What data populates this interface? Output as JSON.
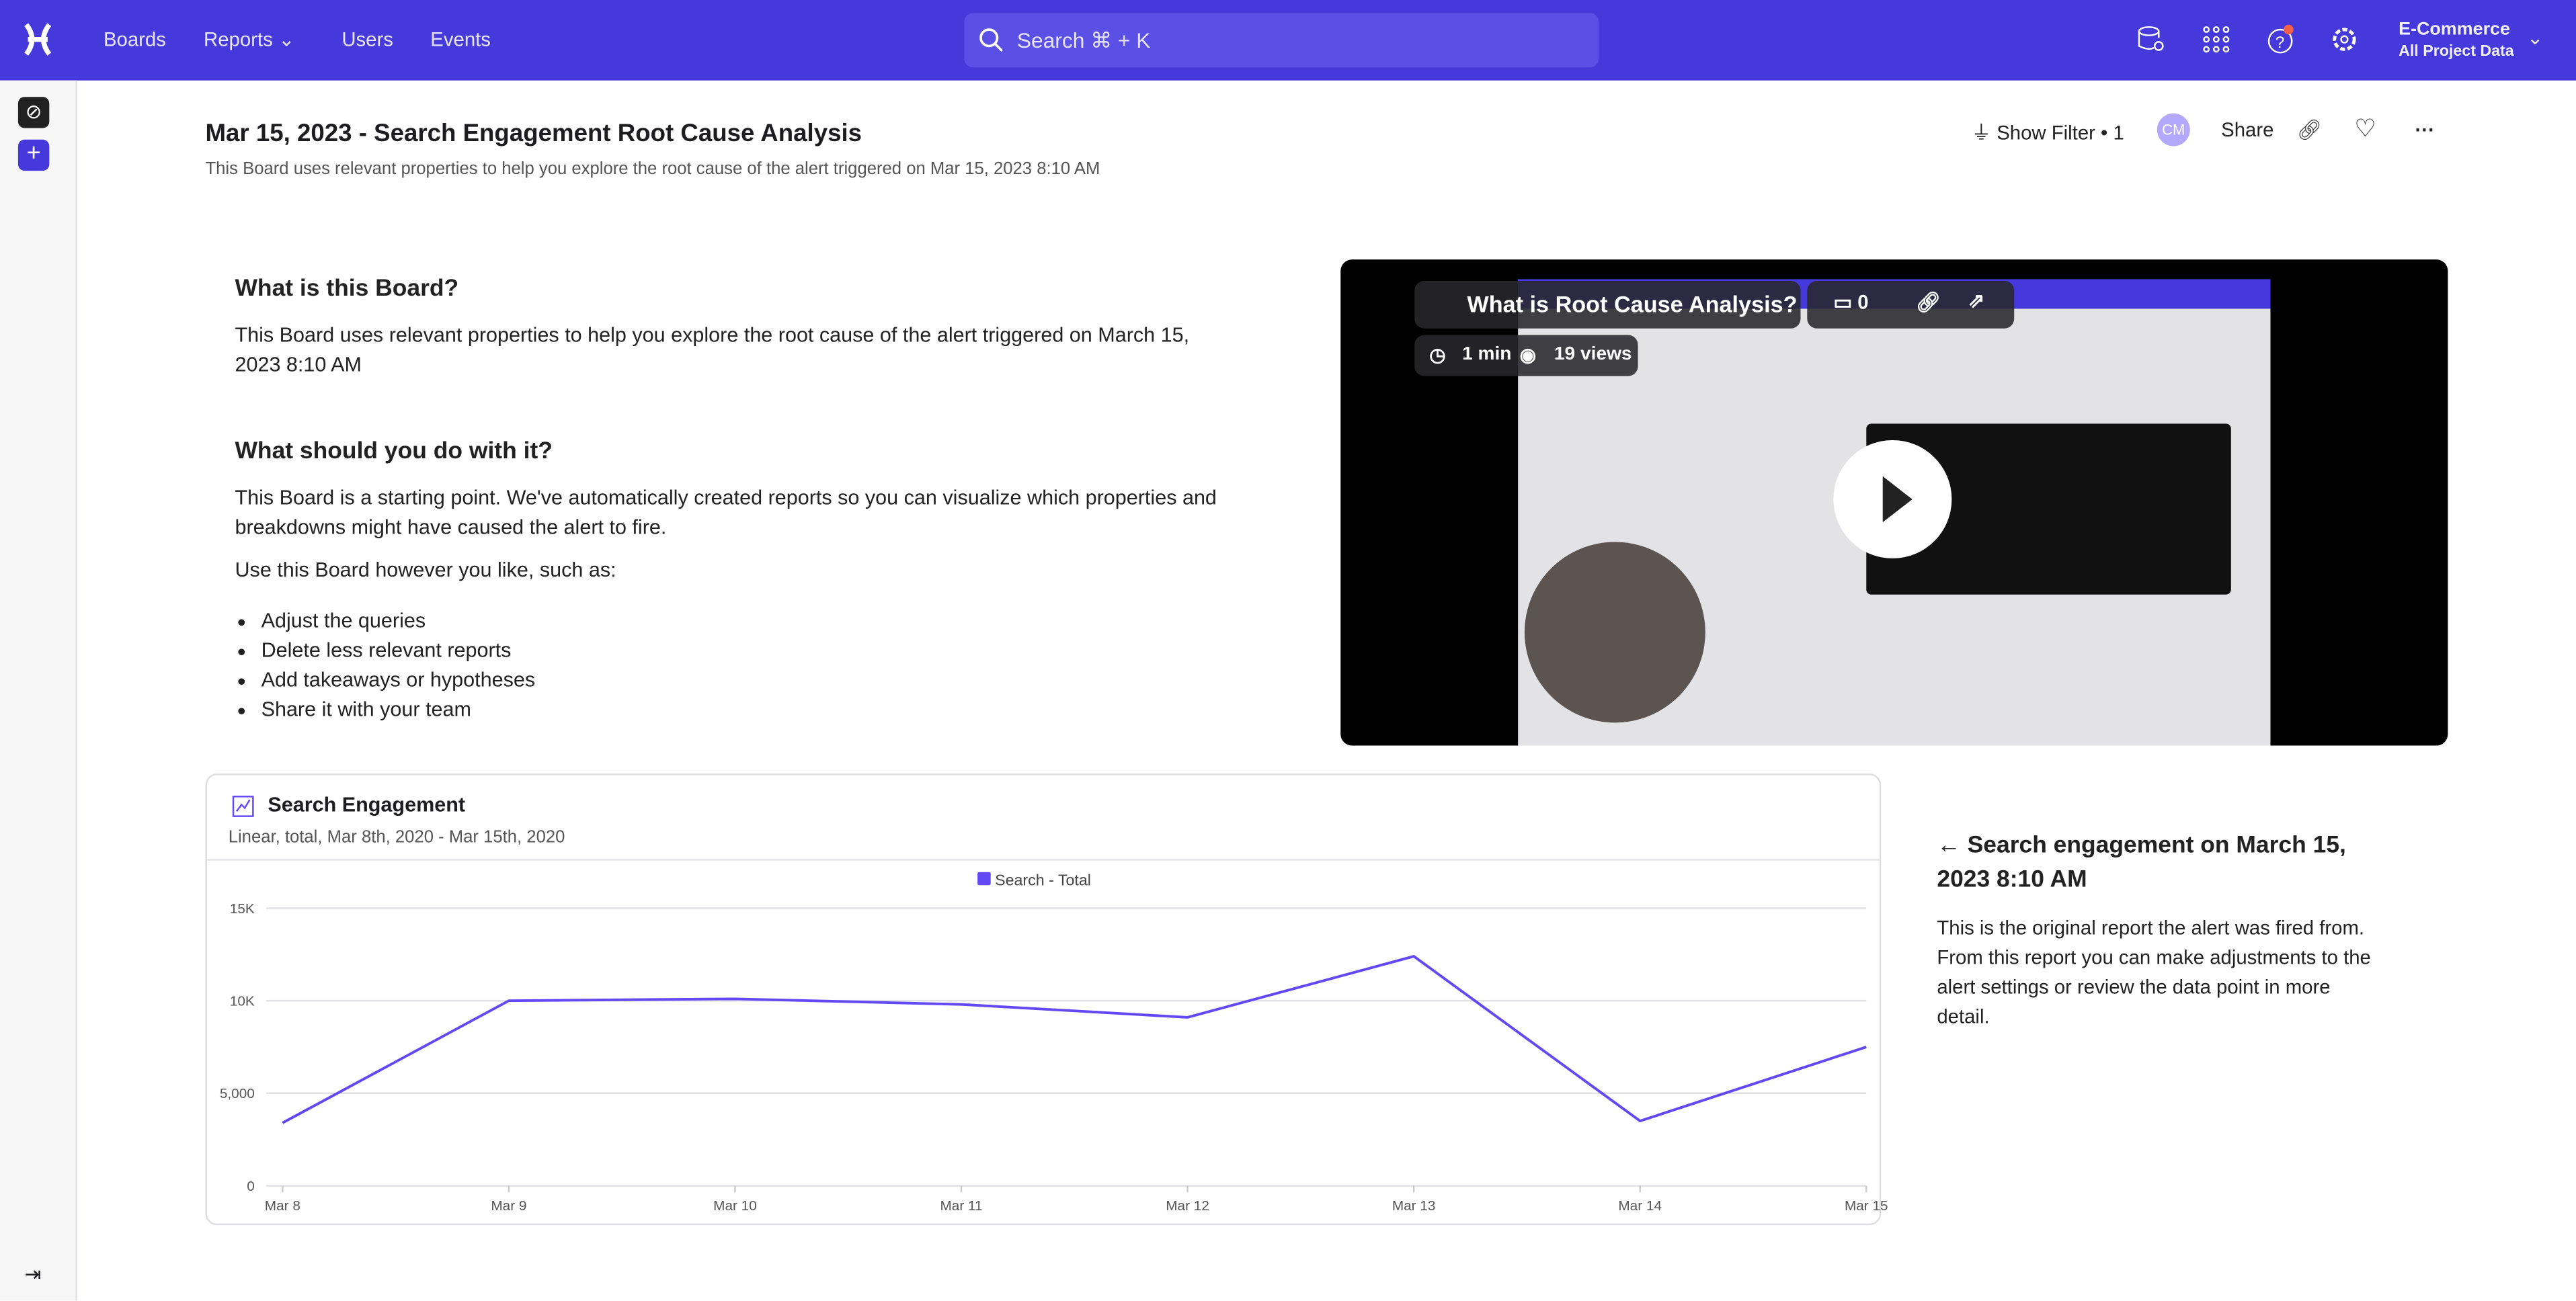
{
  "topbar": {
    "nav": [
      "Boards",
      "Reports",
      "Users",
      "Events"
    ],
    "search_placeholder": "Search  ⌘ + K",
    "project": "E-Commerce",
    "project_sub": "All Project Data",
    "brand_color": "#4639dc"
  },
  "header": {
    "title": "Mar 15, 2023 - Search Engagement Root Cause Analysis",
    "subtitle": "This Board uses relevant properties to help you explore the root cause of the alert triggered on Mar 15, 2023 8:10 AM",
    "show_filter": "Show Filter • 1",
    "avatar": "CM",
    "share": "Share"
  },
  "intro": {
    "h1": "What is this Board?",
    "p1": "This Board uses relevant properties to help you explore the root cause of the alert triggered on March 15, 2023 8:10 AM",
    "h2": "What should you do with it?",
    "p2": "This Board is a starting point. We've automatically created reports so you can visualize which properties and breakdowns might have caused the alert to fire.",
    "p3": "Use this Board however you like, such as:",
    "bullets": [
      "Adjust the queries",
      "Delete less relevant reports",
      "Add takeaways or hypotheses",
      "Share it with your team"
    ]
  },
  "video": {
    "title": "What is Root Cause Analysis?",
    "comments": "0",
    "duration": "1 min",
    "views": "19 views"
  },
  "report": {
    "title": "Search Engagement",
    "subtitle": "Linear, total, Mar 8th, 2020 - Mar 15th, 2020"
  },
  "side_note": {
    "title": "← Search engagement on March 15, 2023 8:10 AM",
    "body": "This is the original report the alert was fired from. From this report you can make adjustments to the alert settings or review the data point in more detail."
  },
  "chart_data": {
    "type": "line",
    "x": [
      "Mar 8",
      "Mar 9",
      "Mar 10",
      "Mar 11",
      "Mar 12",
      "Mar 13",
      "Mar 14",
      "Mar 15"
    ],
    "series": [
      {
        "name": "Search - Total",
        "values": [
          3400,
          10000,
          10100,
          9800,
          9100,
          12400,
          3500,
          7500
        ],
        "color": "#6348f5"
      }
    ],
    "yticks": [
      "0",
      "5,000",
      "10K",
      "15K"
    ],
    "ylim": [
      0,
      15000
    ],
    "grid": true,
    "legend": "top-center"
  }
}
